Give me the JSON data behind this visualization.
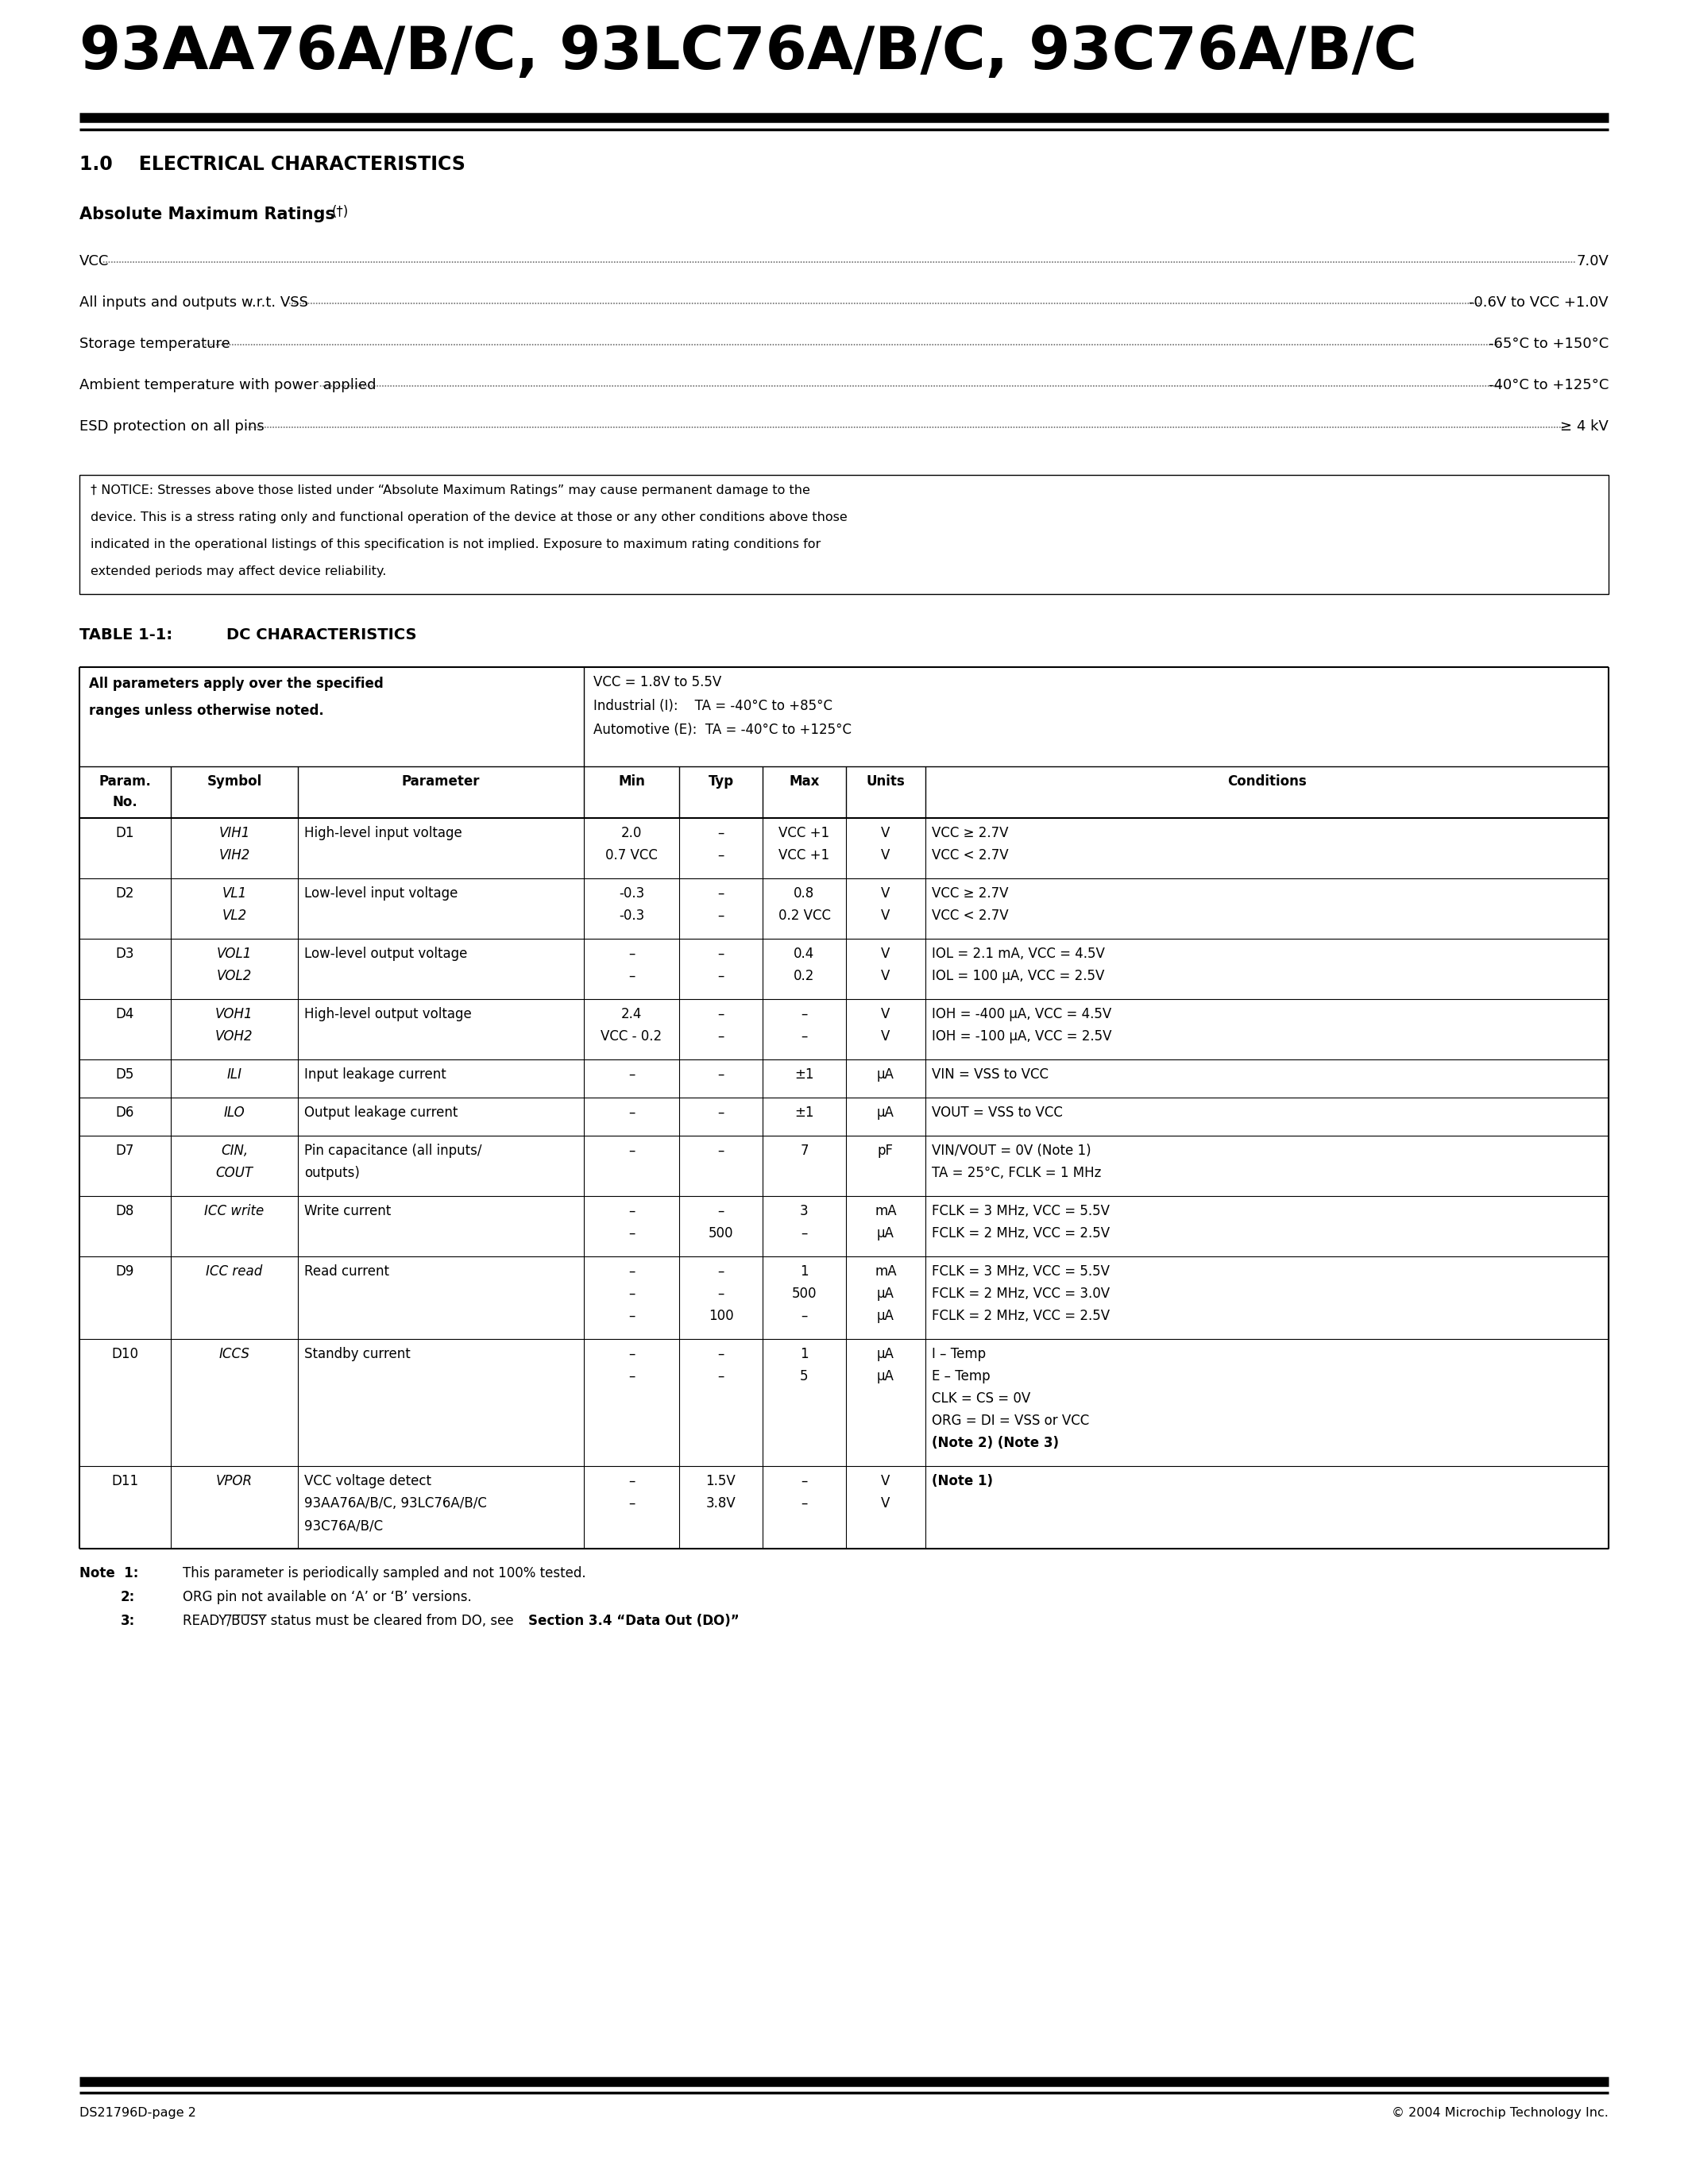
{
  "page_title": "93AA76A/B/C, 93LC76A/B/C, 93C76A/B/C",
  "section_title": "1.0    ELECTRICAL CHARACTERISTICS",
  "abs_max_title": "Absolute Maximum Ratings",
  "abs_max_ratings": [
    [
      "VCC",
      "7.0V"
    ],
    [
      "All inputs and outputs w.r.t. VSS",
      "-0.6V to VCC +1.0V"
    ],
    [
      "Storage temperature",
      "-65°C to +150°C"
    ],
    [
      "Ambient temperature with power applied",
      "-40°C to +125°C"
    ],
    [
      "ESD protection on all pins",
      "≥ 4 kV"
    ]
  ],
  "notice_lines": [
    "† NOTICE: Stresses above those listed under “Absolute Maximum Ratings” may cause permanent damage to the",
    "device. This is a stress rating only and functional operation of the device at those or any other conditions above those",
    "indicated in the operational listings of this specification is not implied. Exposure to maximum rating conditions for",
    "extended periods may affect device reliability."
  ],
  "table_title": "TABLE 1-1:    DC CHARACTERISTICS",
  "table_header_left1": "All parameters apply over the specified",
  "table_header_left2": "ranges unless otherwise noted.",
  "table_header_right1": "VCC = 1.8V to 5.5V",
  "table_header_right2": "Industrial (I):    TA = -40°C to +85°C",
  "table_header_right3": "Automotive (E):  TA = -40°C to +125°C",
  "col_headers": [
    "Param.\nNo.",
    "Symbol",
    "Parameter",
    "Min",
    "Typ",
    "Max",
    "Units",
    "Conditions"
  ],
  "table_rows": [
    {
      "param": "D1",
      "symbol": [
        "VIH1",
        "VIH2"
      ],
      "parameter": [
        "High-level input voltage",
        ""
      ],
      "min": [
        "2.0",
        "0.7 VCC"
      ],
      "typ": [
        "–",
        "–"
      ],
      "max": [
        "VCC +1",
        "VCC +1"
      ],
      "units": [
        "V",
        "V"
      ],
      "conditions": [
        "VCC ≥ 2.7V",
        "VCC < 2.7V"
      ]
    },
    {
      "param": "D2",
      "symbol": [
        "VL1",
        "VL2"
      ],
      "parameter": [
        "Low-level input voltage",
        ""
      ],
      "min": [
        "-0.3",
        "-0.3"
      ],
      "typ": [
        "–",
        "–"
      ],
      "max": [
        "0.8",
        "0.2 VCC"
      ],
      "units": [
        "V",
        "V"
      ],
      "conditions": [
        "VCC ≥ 2.7V",
        "VCC < 2.7V"
      ]
    },
    {
      "param": "D3",
      "symbol": [
        "VOL1",
        "VOL2"
      ],
      "parameter": [
        "Low-level output voltage",
        ""
      ],
      "min": [
        "–",
        "–"
      ],
      "typ": [
        "–",
        "–"
      ],
      "max": [
        "0.4",
        "0.2"
      ],
      "units": [
        "V",
        "V"
      ],
      "conditions": [
        "IOL = 2.1 mA, VCC = 4.5V",
        "IOL = 100 μA, VCC = 2.5V"
      ]
    },
    {
      "param": "D4",
      "symbol": [
        "VOH1",
        "VOH2"
      ],
      "parameter": [
        "High-level output voltage",
        ""
      ],
      "min": [
        "2.4",
        "VCC - 0.2"
      ],
      "typ": [
        "–",
        "–"
      ],
      "max": [
        "–",
        "–"
      ],
      "units": [
        "V",
        "V"
      ],
      "conditions": [
        "IOH = -400 μA, VCC = 4.5V",
        "IOH = -100 μA, VCC = 2.5V"
      ]
    },
    {
      "param": "D5",
      "symbol": [
        "ILI"
      ],
      "parameter": [
        "Input leakage current"
      ],
      "min": [
        "–"
      ],
      "typ": [
        "–"
      ],
      "max": [
        "±1"
      ],
      "units": [
        "μA"
      ],
      "conditions": [
        "VIN = VSS to VCC"
      ]
    },
    {
      "param": "D6",
      "symbol": [
        "ILO"
      ],
      "parameter": [
        "Output leakage current"
      ],
      "min": [
        "–"
      ],
      "typ": [
        "–"
      ],
      "max": [
        "±1"
      ],
      "units": [
        "μA"
      ],
      "conditions": [
        "VOUT = VSS to VCC"
      ]
    },
    {
      "param": "D7",
      "symbol": [
        "CIN,",
        "COUT"
      ],
      "parameter": [
        "Pin capacitance (all inputs/",
        "outputs)"
      ],
      "min": [
        "–"
      ],
      "typ": [
        "–"
      ],
      "max": [
        "7"
      ],
      "units": [
        "pF"
      ],
      "conditions": [
        "VIN/VOUT = 0V (Note 1)",
        "TA = 25°C, FCLK = 1 MHz"
      ]
    },
    {
      "param": "D8",
      "symbol": [
        "ICC write"
      ],
      "parameter": [
        "Write current",
        ""
      ],
      "min": [
        "–",
        "–"
      ],
      "typ": [
        "–",
        "500"
      ],
      "max": [
        "3",
        "–"
      ],
      "units": [
        "mA",
        "μA"
      ],
      "conditions": [
        "FCLK = 3 MHz, VCC = 5.5V",
        "FCLK = 2 MHz, VCC = 2.5V"
      ]
    },
    {
      "param": "D9",
      "symbol": [
        "ICC read"
      ],
      "parameter": [
        "Read current",
        "",
        ""
      ],
      "min": [
        "–",
        "–",
        "–"
      ],
      "typ": [
        "–",
        "–",
        "100"
      ],
      "max": [
        "1",
        "500",
        "–"
      ],
      "units": [
        "mA",
        "μA",
        "μA"
      ],
      "conditions": [
        "FCLK = 3 MHz, VCC = 5.5V",
        "FCLK = 2 MHz, VCC = 3.0V",
        "FCLK = 2 MHz, VCC = 2.5V"
      ]
    },
    {
      "param": "D10",
      "symbol": [
        "ICCS"
      ],
      "parameter": [
        "Standby current",
        "",
        "",
        "",
        ""
      ],
      "min": [
        "–",
        "–"
      ],
      "typ": [
        "–",
        "–"
      ],
      "max": [
        "1",
        "5"
      ],
      "units": [
        "μA",
        "μA"
      ],
      "conditions": [
        "I – Temp",
        "E – Temp",
        "CLK = CS = 0V",
        "ORG = DI = VSS or VCC",
        "(Note 2) (Note 3)"
      ]
    },
    {
      "param": "D11",
      "symbol": [
        "VPOR"
      ],
      "parameter": [
        "VCC voltage detect",
        "93AA76A/B/C, 93LC76A/B/C",
        "93C76A/B/C"
      ],
      "min": [
        "–",
        "–"
      ],
      "typ": [
        "1.5V",
        "3.8V"
      ],
      "max": [
        "–",
        "–"
      ],
      "units": [
        "V",
        "V"
      ],
      "conditions": [
        "(Note 1)"
      ]
    }
  ],
  "note1": "This parameter is periodically sampled and not 100% tested.",
  "note2": "ORG pin not available on ‘A’ or ‘B’ versions.",
  "note3_pre": "READY/BUSY status must be cleared from DO, see ",
  "note3_bold": "Section 3.4 “Data Out (DO)”",
  "note3_post": ".",
  "footer_left": "DS21796D-page 2",
  "footer_right": "© 2004 Microchip Technology Inc."
}
